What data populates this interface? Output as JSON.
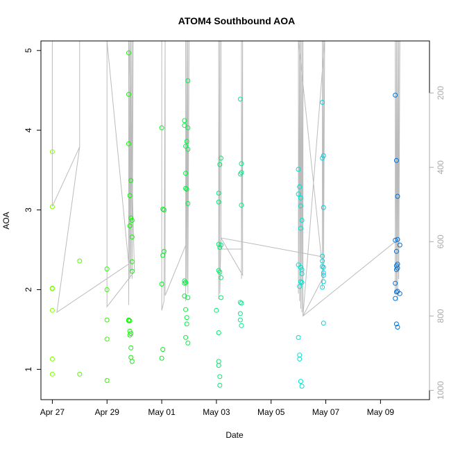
{
  "chart_data": {
    "type": "scatter",
    "title": "ATOM4 Southbound AOA",
    "xlabel": "Date",
    "ylabel": "AOA",
    "x_unit": "date",
    "xlim": [
      "2017-04-26T14:00",
      "2017-05-10T19:00"
    ],
    "ylim": [
      0.62,
      5.12
    ],
    "x_ticks": [
      {
        "date": "2017-04-27",
        "label": "Apr 27"
      },
      {
        "date": "2017-04-29",
        "label": "Apr 29"
      },
      {
        "date": "2017-05-01",
        "label": "May 01"
      },
      {
        "date": "2017-05-03",
        "label": "May 03"
      },
      {
        "date": "2017-05-05",
        "label": "May 05"
      },
      {
        "date": "2017-05-07",
        "label": "May 07"
      },
      {
        "date": "2017-05-09",
        "label": "May 09"
      }
    ],
    "y_ticks": [
      1,
      2,
      3,
      4,
      5
    ],
    "secondary_axis": {
      "side": "right",
      "ticks": [
        200,
        400,
        600,
        800,
        1000
      ],
      "range": [
        60,
        1025
      ],
      "color": "#aaaaaa"
    },
    "series": [
      {
        "marker": "open-circle",
        "color_scale": "time (green to blue)",
        "points": [
          {
            "x": "2017-04-27T00:00",
            "y": 3.73
          },
          {
            "x": "2017-04-27T00:00",
            "y": 3.04
          },
          {
            "x": "2017-04-27T00:00",
            "y": 2.01
          },
          {
            "x": "2017-04-27T00:00",
            "y": 2.02
          },
          {
            "x": "2017-04-27T00:00",
            "y": 1.74
          },
          {
            "x": "2017-04-27T00:00",
            "y": 1.13
          },
          {
            "x": "2017-04-27T00:00",
            "y": 0.94
          },
          {
            "x": "2017-04-28T00:00",
            "y": 2.36
          },
          {
            "x": "2017-04-28T00:00",
            "y": 0.94
          },
          {
            "x": "2017-04-29T00:00",
            "y": 2.26
          },
          {
            "x": "2017-04-29T00:00",
            "y": 2.0
          },
          {
            "x": "2017-04-29T00:00",
            "y": 1.62
          },
          {
            "x": "2017-04-29T00:00",
            "y": 1.38
          },
          {
            "x": "2017-04-29T00:00",
            "y": 0.86
          },
          {
            "x": "2017-04-29T19:00",
            "y": 4.97
          },
          {
            "x": "2017-04-29T19:00",
            "y": 4.45
          },
          {
            "x": "2017-04-29T19:00",
            "y": 3.83
          },
          {
            "x": "2017-04-29T19:00",
            "y": 1.62
          },
          {
            "x": "2017-04-29T19:00",
            "y": 1.61
          },
          {
            "x": "2017-04-29T20:00",
            "y": 3.18
          },
          {
            "x": "2017-04-29T20:00",
            "y": 2.8
          },
          {
            "x": "2017-04-29T20:00",
            "y": 1.61
          },
          {
            "x": "2017-04-29T20:00",
            "y": 1.48
          },
          {
            "x": "2017-04-29T20:00",
            "y": 1.43
          },
          {
            "x": "2017-04-29T21:00",
            "y": 3.37
          },
          {
            "x": "2017-04-29T21:00",
            "y": 2.9
          },
          {
            "x": "2017-04-29T21:00",
            "y": 1.45
          },
          {
            "x": "2017-04-29T21:00",
            "y": 1.27
          },
          {
            "x": "2017-04-29T21:00",
            "y": 1.15
          },
          {
            "x": "2017-04-29T22:00",
            "y": 2.87
          },
          {
            "x": "2017-04-29T22:00",
            "y": 2.66
          },
          {
            "x": "2017-04-29T22:00",
            "y": 2.35
          },
          {
            "x": "2017-04-29T22:00",
            "y": 2.23
          },
          {
            "x": "2017-04-29T22:00",
            "y": 1.1
          },
          {
            "x": "2017-05-01T00:00",
            "y": 4.03
          },
          {
            "x": "2017-05-01T00:00",
            "y": 2.07
          },
          {
            "x": "2017-05-01T00:00",
            "y": 1.14
          },
          {
            "x": "2017-05-01T01:00",
            "y": 3.01
          },
          {
            "x": "2017-05-01T01:00",
            "y": 2.43
          },
          {
            "x": "2017-05-01T01:00",
            "y": 1.25
          },
          {
            "x": "2017-05-01T02:00",
            "y": 3.0
          },
          {
            "x": "2017-05-01T02:00",
            "y": 2.48
          },
          {
            "x": "2017-05-01T20:00",
            "y": 4.12
          },
          {
            "x": "2017-05-01T20:00",
            "y": 4.06
          },
          {
            "x": "2017-05-01T20:00",
            "y": 2.11
          },
          {
            "x": "2017-05-01T20:00",
            "y": 2.08
          },
          {
            "x": "2017-05-01T20:00",
            "y": 1.92
          },
          {
            "x": "2017-05-01T21:00",
            "y": 3.8
          },
          {
            "x": "2017-05-01T21:00",
            "y": 3.46
          },
          {
            "x": "2017-05-01T21:00",
            "y": 3.27
          },
          {
            "x": "2017-05-01T21:00",
            "y": 2.09
          },
          {
            "x": "2017-05-01T21:00",
            "y": 1.75
          },
          {
            "x": "2017-05-01T21:00",
            "y": 1.4
          },
          {
            "x": "2017-05-01T22:00",
            "y": 3.86
          },
          {
            "x": "2017-05-01T22:00",
            "y": 3.26
          },
          {
            "x": "2017-05-01T22:00",
            "y": 1.65
          },
          {
            "x": "2017-05-01T22:00",
            "y": 1.57
          },
          {
            "x": "2017-05-01T23:00",
            "y": 4.62
          },
          {
            "x": "2017-05-01T23:00",
            "y": 4.03
          },
          {
            "x": "2017-05-01T23:00",
            "y": 3.76
          },
          {
            "x": "2017-05-01T23:00",
            "y": 3.08
          },
          {
            "x": "2017-05-01T23:00",
            "y": 1.9
          },
          {
            "x": "2017-05-01T23:00",
            "y": 1.33
          },
          {
            "x": "2017-05-03T00:00",
            "y": 1.74
          },
          {
            "x": "2017-05-03T02:00",
            "y": 3.21
          },
          {
            "x": "2017-05-03T02:00",
            "y": 3.1
          },
          {
            "x": "2017-05-03T02:00",
            "y": 2.57
          },
          {
            "x": "2017-05-03T02:00",
            "y": 2.24
          },
          {
            "x": "2017-05-03T02:00",
            "y": 1.46
          },
          {
            "x": "2017-05-03T02:00",
            "y": 1.1
          },
          {
            "x": "2017-05-03T02:00",
            "y": 1.05
          },
          {
            "x": "2017-05-03T03:00",
            "y": 3.57
          },
          {
            "x": "2017-05-03T03:00",
            "y": 2.53
          },
          {
            "x": "2017-05-03T03:00",
            "y": 2.22
          },
          {
            "x": "2017-05-03T03:00",
            "y": 0.91
          },
          {
            "x": "2017-05-03T03:00",
            "y": 0.8
          },
          {
            "x": "2017-05-03T04:00",
            "y": 3.65
          },
          {
            "x": "2017-05-03T04:00",
            "y": 2.56
          },
          {
            "x": "2017-05-03T04:00",
            "y": 2.15
          },
          {
            "x": "2017-05-03T04:00",
            "y": 1.9
          },
          {
            "x": "2017-05-03T21:00",
            "y": 4.39
          },
          {
            "x": "2017-05-03T21:00",
            "y": 3.45
          },
          {
            "x": "2017-05-03T21:00",
            "y": 1.84
          },
          {
            "x": "2017-05-03T21:00",
            "y": 1.7
          },
          {
            "x": "2017-05-03T21:00",
            "y": 1.62
          },
          {
            "x": "2017-05-03T22:00",
            "y": 3.58
          },
          {
            "x": "2017-05-03T22:00",
            "y": 3.47
          },
          {
            "x": "2017-05-03T22:00",
            "y": 3.06
          },
          {
            "x": "2017-05-03T22:00",
            "y": 1.83
          },
          {
            "x": "2017-05-03T22:00",
            "y": 1.55
          },
          {
            "x": "2017-05-06T00:00",
            "y": 3.51
          },
          {
            "x": "2017-05-06T00:00",
            "y": 3.2
          },
          {
            "x": "2017-05-06T00:00",
            "y": 2.31
          },
          {
            "x": "2017-05-06T00:00",
            "y": 1.4
          },
          {
            "x": "2017-05-06T01:00",
            "y": 3.29
          },
          {
            "x": "2017-05-06T01:00",
            "y": 2.04
          },
          {
            "x": "2017-05-06T01:00",
            "y": 1.18
          },
          {
            "x": "2017-05-06T01:00",
            "y": 1.13
          },
          {
            "x": "2017-05-06T02:00",
            "y": 3.15
          },
          {
            "x": "2017-05-06T02:00",
            "y": 3.05
          },
          {
            "x": "2017-05-06T02:00",
            "y": 2.77
          },
          {
            "x": "2017-05-06T02:00",
            "y": 2.28
          },
          {
            "x": "2017-05-06T02:00",
            "y": 2.1
          },
          {
            "x": "2017-05-06T02:00",
            "y": 0.85
          },
          {
            "x": "2017-05-06T03:00",
            "y": 2.87
          },
          {
            "x": "2017-05-06T03:00",
            "y": 2.25
          },
          {
            "x": "2017-05-06T03:00",
            "y": 2.2
          },
          {
            "x": "2017-05-06T03:00",
            "y": 2.09
          },
          {
            "x": "2017-05-06T03:00",
            "y": 0.79
          },
          {
            "x": "2017-05-06T21:00",
            "y": 4.35
          },
          {
            "x": "2017-05-06T21:00",
            "y": 3.65
          },
          {
            "x": "2017-05-06T21:00",
            "y": 2.42
          },
          {
            "x": "2017-05-06T21:00",
            "y": 2.36
          },
          {
            "x": "2017-05-06T21:00",
            "y": 2.29
          },
          {
            "x": "2017-05-06T21:00",
            "y": 2.03
          },
          {
            "x": "2017-05-06T22:00",
            "y": 3.68
          },
          {
            "x": "2017-05-06T22:00",
            "y": 3.03
          },
          {
            "x": "2017-05-06T22:00",
            "y": 2.28
          },
          {
            "x": "2017-05-06T22:00",
            "y": 2.21
          },
          {
            "x": "2017-05-06T22:00",
            "y": 2.18
          },
          {
            "x": "2017-05-06T22:00",
            "y": 2.1
          },
          {
            "x": "2017-05-06T22:00",
            "y": 1.58
          },
          {
            "x": "2017-05-09T13:00",
            "y": 4.44
          },
          {
            "x": "2017-05-09T13:00",
            "y": 2.62
          },
          {
            "x": "2017-05-09T13:00",
            "y": 2.08
          },
          {
            "x": "2017-05-09T13:00",
            "y": 1.89
          },
          {
            "x": "2017-05-09T14:00",
            "y": 3.62
          },
          {
            "x": "2017-05-09T14:00",
            "y": 2.48
          },
          {
            "x": "2017-05-09T14:00",
            "y": 2.3
          },
          {
            "x": "2017-05-09T14:00",
            "y": 2.25
          },
          {
            "x": "2017-05-09T14:00",
            "y": 1.97
          },
          {
            "x": "2017-05-09T14:00",
            "y": 1.57
          },
          {
            "x": "2017-05-09T15:00",
            "y": 3.17
          },
          {
            "x": "2017-05-09T15:00",
            "y": 2.63
          },
          {
            "x": "2017-05-09T15:00",
            "y": 2.32
          },
          {
            "x": "2017-05-09T15:00",
            "y": 2.27
          },
          {
            "x": "2017-05-09T15:00",
            "y": 1.98
          },
          {
            "x": "2017-05-09T15:00",
            "y": 1.53
          },
          {
            "x": "2017-05-09T17:00",
            "y": 2.56
          },
          {
            "x": "2017-05-09T17:00",
            "y": 1.95
          }
        ]
      }
    ],
    "overlay_line": {
      "axis": "right",
      "color": "#bbbbbb",
      "points": [
        {
          "x": "2017-04-27T00:00",
          "y": 40
        },
        {
          "x": "2017-04-27T00:00",
          "y": 505
        },
        {
          "x": "2017-04-28T00:00",
          "y": 345
        },
        {
          "x": "2017-04-28T00:00",
          "y": 40
        },
        {
          "x": "2017-04-28T00:00",
          "y": 345
        },
        {
          "x": "2017-04-27T04:00",
          "y": 790
        },
        {
          "x": "2017-04-27T04:00",
          "y": 790
        },
        {
          "x": "2017-04-29T19:00",
          "y": 660
        },
        {
          "x": "2017-04-29T00:00",
          "y": 40
        },
        {
          "x": "2017-04-29T00:00",
          "y": 775
        },
        {
          "x": "2017-04-30T00:00",
          "y": 680
        },
        {
          "x": "2017-04-29T19:00",
          "y": 40
        },
        {
          "x": "2017-04-29T19:00",
          "y": 770
        },
        {
          "x": "2017-04-29T20:00",
          "y": 40
        },
        {
          "x": "2017-04-29T20:00",
          "y": 700
        },
        {
          "x": "2017-04-29T21:00",
          "y": 40
        },
        {
          "x": "2017-04-29T21:00",
          "y": 680
        },
        {
          "x": "2017-04-29T22:00",
          "y": 40
        },
        {
          "x": "2017-04-29T22:00",
          "y": 700
        },
        {
          "x": "2017-04-29T23:00",
          "y": 40
        },
        {
          "x": "2017-05-01T00:00",
          "y": 40
        },
        {
          "x": "2017-05-01T00:00",
          "y": 785
        },
        {
          "x": "2017-05-01T02:00",
          "y": 760
        },
        {
          "x": "2017-05-01T03:00",
          "y": 40
        },
        {
          "x": "2017-05-01T03:00",
          "y": 745
        },
        {
          "x": "2017-05-01T21:00",
          "y": 610
        },
        {
          "x": "2017-05-01T21:00",
          "y": 40
        },
        {
          "x": "2017-05-01T21:00",
          "y": 760
        },
        {
          "x": "2017-05-01T22:00",
          "y": 40
        },
        {
          "x": "2017-05-01T22:00",
          "y": 720
        },
        {
          "x": "2017-05-01T23:00",
          "y": 40
        },
        {
          "x": "2017-05-01T23:00",
          "y": 740
        },
        {
          "x": "2017-05-02T00:00",
          "y": 40
        },
        {
          "x": "2017-05-03T02:00",
          "y": 40
        },
        {
          "x": "2017-05-03T02:00",
          "y": 755
        },
        {
          "x": "2017-05-03T03:00",
          "y": 40
        },
        {
          "x": "2017-05-03T03:00",
          "y": 740
        },
        {
          "x": "2017-05-03T04:00",
          "y": 590
        },
        {
          "x": "2017-05-03T04:00",
          "y": 40
        },
        {
          "x": "2017-05-03T04:00",
          "y": 620
        },
        {
          "x": "2017-05-03T22:00",
          "y": 620
        },
        {
          "x": "2017-05-03T22:00",
          "y": 40
        },
        {
          "x": "2017-05-03T22:00",
          "y": 700
        },
        {
          "x": "2017-05-03T23:00",
          "y": 40
        },
        {
          "x": "2017-05-03T23:00",
          "y": 690
        },
        {
          "x": "2017-05-03T04:00",
          "y": 590
        },
        {
          "x": "2017-05-06T20:00",
          "y": 640
        },
        {
          "x": "2017-05-06T00:00",
          "y": 40
        },
        {
          "x": "2017-05-06T00:00",
          "y": 740
        },
        {
          "x": "2017-05-06T01:00",
          "y": 40
        },
        {
          "x": "2017-05-06T01:00",
          "y": 760
        },
        {
          "x": "2017-05-06T02:00",
          "y": 40
        },
        {
          "x": "2017-05-06T02:00",
          "y": 780
        },
        {
          "x": "2017-05-06T03:00",
          "y": 40
        },
        {
          "x": "2017-05-06T03:00",
          "y": 790
        },
        {
          "x": "2017-05-06T04:00",
          "y": 40
        },
        {
          "x": "2017-05-06T04:00",
          "y": 800
        },
        {
          "x": "2017-05-06T21:00",
          "y": 700
        },
        {
          "x": "2017-05-06T21:00",
          "y": 40
        },
        {
          "x": "2017-05-06T21:00",
          "y": 725
        },
        {
          "x": "2017-05-06T22:00",
          "y": 40
        },
        {
          "x": "2017-05-06T22:00",
          "y": 700
        },
        {
          "x": "2017-05-06T23:00",
          "y": 40
        },
        {
          "x": "2017-05-06T04:00",
          "y": 800
        },
        {
          "x": "2017-05-09T13:00",
          "y": 600
        },
        {
          "x": "2017-05-09T13:00",
          "y": 40
        },
        {
          "x": "2017-05-09T13:00",
          "y": 740
        },
        {
          "x": "2017-05-09T14:00",
          "y": 40
        },
        {
          "x": "2017-05-09T14:00",
          "y": 740
        },
        {
          "x": "2017-05-09T15:00",
          "y": 40
        },
        {
          "x": "2017-05-09T15:00",
          "y": 760
        },
        {
          "x": "2017-05-09T16:00",
          "y": 40
        },
        {
          "x": "2017-05-09T16:00",
          "y": 700
        },
        {
          "x": "2017-05-09T17:00",
          "y": 40
        }
      ]
    },
    "grid": false,
    "legend": "none"
  }
}
